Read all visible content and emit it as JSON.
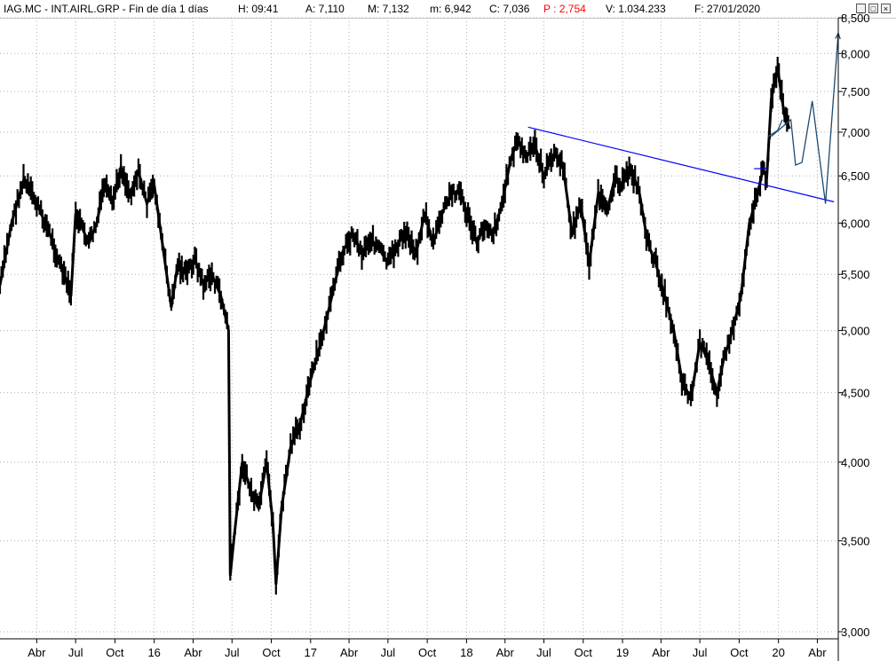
{
  "header": {
    "symbol": "IAG.MC - INT.AIRL.GRP - Fin de día 1 días",
    "hour": "H: 09:41",
    "open": "A: 7,110",
    "high": "M: 7,132",
    "low": "m: 6,942",
    "close": "C: 7,036",
    "change": "P : 2,754",
    "volume": "V: 1.034.233",
    "date": "F: 27/01/2020",
    "change_color": "#ff0000"
  },
  "window_controls": {
    "minimize": "_",
    "maximize": "□",
    "close": "×"
  },
  "chart_data": {
    "type": "line",
    "y_scale": "log",
    "ylim": [
      3.0,
      8.5
    ],
    "y_ticks": [
      "3,000",
      "3,500",
      "4,000",
      "4,500",
      "5,000",
      "5,500",
      "6,000",
      "6,500",
      "7,000",
      "7,500",
      "8,000",
      "8,500"
    ],
    "y_tick_values": [
      3.0,
      3.5,
      4.0,
      4.5,
      5.0,
      5.5,
      6.0,
      6.5,
      7.0,
      7.5,
      8.0,
      8.5
    ],
    "x_ticks": [
      "Abr",
      "Jul",
      "Oct",
      "16",
      "Abr",
      "Jul",
      "Oct",
      "17",
      "Abr",
      "Jul",
      "Oct",
      "18",
      "Abr",
      "Jul",
      "Oct",
      "19",
      "Abr",
      "Jul",
      "Oct",
      "20",
      "Abr"
    ],
    "x_tick_dates": [
      "2015-04-01",
      "2015-07-01",
      "2015-10-01",
      "2016-01-01",
      "2016-04-01",
      "2016-07-01",
      "2016-10-01",
      "2017-01-01",
      "2017-04-01",
      "2017-07-01",
      "2017-10-01",
      "2018-01-01",
      "2018-04-01",
      "2018-07-01",
      "2018-10-01",
      "2019-01-01",
      "2019-04-01",
      "2019-07-01",
      "2019-10-01",
      "2020-01-01",
      "2020-04-01"
    ],
    "xlim": [
      "2015-01-05",
      "2020-05-20"
    ],
    "grid": "dotted",
    "series": [
      {
        "color": "#000000",
        "x": [
          "2015-01-05",
          "2015-02-01",
          "2015-03-01",
          "2015-04-01",
          "2015-05-01",
          "2015-05-25",
          "2015-06-20",
          "2015-07-01",
          "2015-08-01",
          "2015-08-20",
          "2015-09-05",
          "2015-09-25",
          "2015-10-15",
          "2015-11-05",
          "2015-11-25",
          "2015-12-15",
          "2016-01-01",
          "2016-01-20",
          "2016-02-10",
          "2016-02-25",
          "2016-03-15",
          "2016-04-05",
          "2016-04-25",
          "2016-05-15",
          "2016-06-05",
          "2016-06-23",
          "2016-06-27",
          "2016-07-05",
          "2016-07-25",
          "2016-08-15",
          "2016-09-01",
          "2016-09-20",
          "2016-10-05",
          "2016-10-12",
          "2016-10-25",
          "2016-11-15",
          "2016-12-10",
          "2017-01-01",
          "2017-01-25",
          "2017-02-20",
          "2017-03-15",
          "2017-04-10",
          "2017-05-01",
          "2017-05-20",
          "2017-06-10",
          "2017-07-01",
          "2017-07-25",
          "2017-08-15",
          "2017-09-05",
          "2017-09-25",
          "2017-10-15",
          "2017-11-05",
          "2017-11-25",
          "2017-12-15",
          "2018-01-01",
          "2018-01-25",
          "2018-02-15",
          "2018-03-05",
          "2018-03-25",
          "2018-04-15",
          "2018-05-01",
          "2018-05-20",
          "2018-06-10",
          "2018-07-01",
          "2018-07-25",
          "2018-08-15",
          "2018-09-05",
          "2018-09-25",
          "2018-10-15",
          "2018-11-05",
          "2018-11-25",
          "2018-12-15",
          "2019-01-01",
          "2019-01-20",
          "2019-02-10",
          "2019-03-01",
          "2019-03-20",
          "2019-04-10",
          "2019-05-01",
          "2019-05-20",
          "2019-06-10",
          "2019-07-01",
          "2019-07-20",
          "2019-08-10",
          "2019-08-25",
          "2019-09-15",
          "2019-10-05",
          "2019-10-25",
          "2019-11-10",
          "2019-11-25",
          "2019-12-05",
          "2019-12-15",
          "2019-12-30",
          "2020-01-15",
          "2020-01-27"
        ],
        "values": [
          5.4,
          6.0,
          6.45,
          6.2,
          5.9,
          5.6,
          5.3,
          6.1,
          5.8,
          6.0,
          6.4,
          6.2,
          6.6,
          6.3,
          6.55,
          6.2,
          6.4,
          5.8,
          5.2,
          5.6,
          5.5,
          5.65,
          5.4,
          5.5,
          5.3,
          5.0,
          3.3,
          3.5,
          4.0,
          3.8,
          3.7,
          4.0,
          3.6,
          3.25,
          3.7,
          4.1,
          4.3,
          4.6,
          4.9,
          5.3,
          5.7,
          5.9,
          5.7,
          5.85,
          5.75,
          5.6,
          5.8,
          5.9,
          5.7,
          6.1,
          5.8,
          6.1,
          6.3,
          6.35,
          6.1,
          5.8,
          6.0,
          5.9,
          6.2,
          6.7,
          6.9,
          6.7,
          6.85,
          6.5,
          6.75,
          6.6,
          5.9,
          6.2,
          5.6,
          6.3,
          6.1,
          6.5,
          6.4,
          6.6,
          6.3,
          5.8,
          5.6,
          5.3,
          5.0,
          4.6,
          4.45,
          4.9,
          4.75,
          4.5,
          4.75,
          5.0,
          5.3,
          6.0,
          6.25,
          6.55,
          6.5,
          7.4,
          7.8,
          7.2,
          7.04
        ]
      }
    ],
    "annotations": [
      {
        "type": "trendline",
        "color": "#0000ff",
        "from": [
          "2018-05-25",
          7.06
        ],
        "to": [
          "2020-05-10",
          6.22
        ]
      },
      {
        "type": "level",
        "color": "#0000ff",
        "from": [
          "2019-11-05",
          6.58
        ],
        "to": [
          "2019-12-05",
          6.58
        ]
      },
      {
        "type": "projection",
        "color": "#1c4a70",
        "x": [
          "2019-12-15",
          "2020-01-30",
          "2020-02-10",
          "2020-02-25",
          "2020-03-20",
          "2020-04-20",
          "2020-05-20"
        ],
        "values": [
          6.95,
          7.15,
          6.62,
          6.65,
          7.38,
          6.2,
          8.28
        ]
      },
      {
        "type": "small-wedge",
        "color": "#1c4a70",
        "x": [
          "2019-12-08",
          "2019-12-30",
          "2020-01-10"
        ],
        "values": [
          6.95,
          7.02,
          7.15
        ]
      }
    ]
  }
}
